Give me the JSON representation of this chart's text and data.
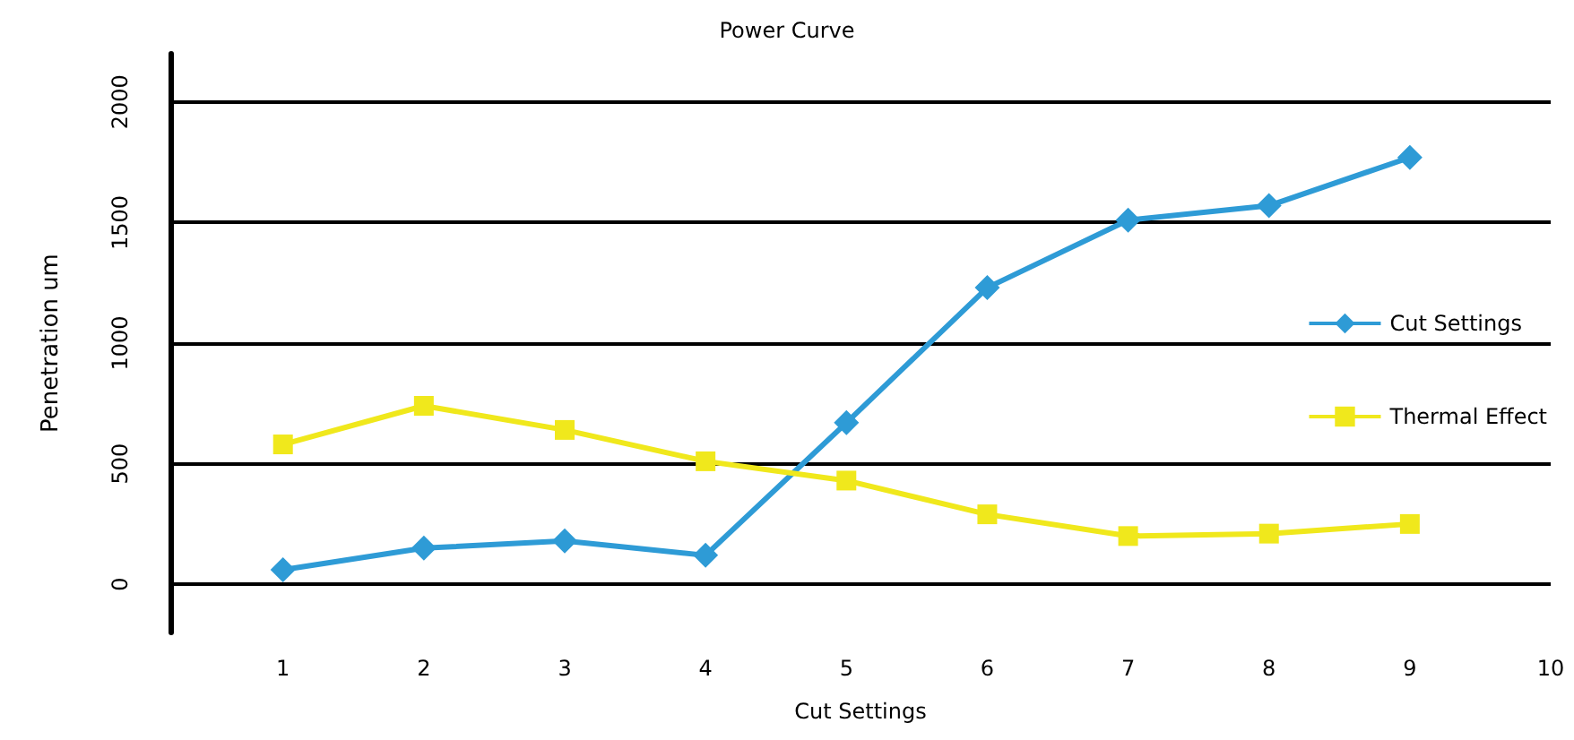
{
  "chart_data": {
    "type": "line",
    "title": "Power Curve",
    "xlabel": "Cut Settings",
    "ylabel": "Penetration um",
    "x": [
      1,
      2,
      3,
      4,
      5,
      6,
      7,
      8,
      9
    ],
    "series": [
      {
        "name": "Cut Settings",
        "color": "#2e9bd6",
        "marker": "diamond",
        "values": [
          60,
          150,
          180,
          120,
          670,
          1230,
          1510,
          1570,
          1770
        ]
      },
      {
        "name": "Thermal Effect",
        "color": "#f0e81c",
        "marker": "square",
        "values": [
          580,
          740,
          640,
          510,
          430,
          290,
          200,
          210,
          250
        ]
      }
    ],
    "xlim": [
      0.2,
      10
    ],
    "xticks": [
      1,
      2,
      3,
      4,
      5,
      6,
      7,
      8,
      9,
      10
    ],
    "ylim": [
      -200,
      2200
    ],
    "yticks": [
      0,
      500,
      1000,
      1500,
      2000
    ],
    "grid": "y",
    "legend": "right"
  }
}
